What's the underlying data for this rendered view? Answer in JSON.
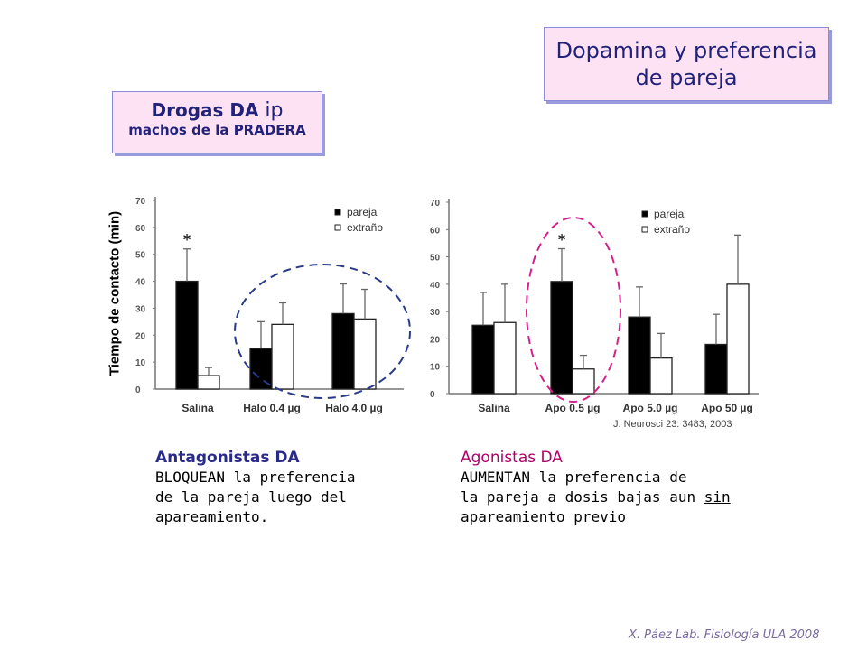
{
  "title": {
    "line1": "Dopamina y preferencia",
    "line2": "de pareja"
  },
  "drugs_box": {
    "line1": "Drogas DA",
    "line1_suffix": "ip",
    "line2": "machos de la PRADERA"
  },
  "ylabel": "Tiempo de contacto (min)",
  "chart_data": [
    {
      "type": "bar",
      "title": "",
      "ylabel": "Tiempo de contacto (min)",
      "ylim": [
        0,
        70
      ],
      "yticks": [
        0,
        10,
        20,
        30,
        40,
        50,
        60,
        70
      ],
      "categories": [
        "Salina",
        "Halo 0.4 µg",
        "Halo 4.0 µg"
      ],
      "series": [
        {
          "name": "pareja",
          "color": "#000000",
          "values": [
            40,
            15,
            28
          ],
          "errors": [
            12,
            10,
            11
          ]
        },
        {
          "name": "extraño",
          "color": "#ffffff",
          "values": [
            5,
            24,
            26
          ],
          "errors": [
            3,
            8,
            11
          ]
        }
      ],
      "annotations": [
        "*"
      ],
      "legend_position": "top-right"
    },
    {
      "type": "bar",
      "title": "",
      "ylim": [
        0,
        70
      ],
      "yticks": [
        0,
        10,
        20,
        30,
        40,
        50,
        60,
        70
      ],
      "categories": [
        "Salina",
        "Apo 0.5 µg",
        "Apo 5.0 µg",
        "Apo 50 µg"
      ],
      "series": [
        {
          "name": "pareja",
          "color": "#000000",
          "values": [
            25,
            41,
            28,
            18
          ],
          "errors": [
            12,
            12,
            11,
            11
          ]
        },
        {
          "name": "extraño",
          "color": "#ffffff",
          "values": [
            26,
            9,
            13,
            40
          ],
          "errors": [
            14,
            5,
            9,
            18
          ]
        }
      ],
      "annotations": [
        "*"
      ],
      "legend_position": "top-right"
    }
  ],
  "citation": "J. Neurosci 23: 3483, 2003",
  "antagonists": {
    "heading": "Antagonistas DA",
    "line1": "BLOQUEAN la preferencia",
    "line2": "de la pareja luego del",
    "line3": "apareamiento."
  },
  "agonists": {
    "heading": "Agonistas DA",
    "line1": "AUMENTAN la preferencia de",
    "line2": "la pareja a dosis bajas aun",
    "line2_u": "sin",
    "line3": "apareamiento previo"
  },
  "footer": "X. Páez  Lab. Fisiología ULA 2008"
}
